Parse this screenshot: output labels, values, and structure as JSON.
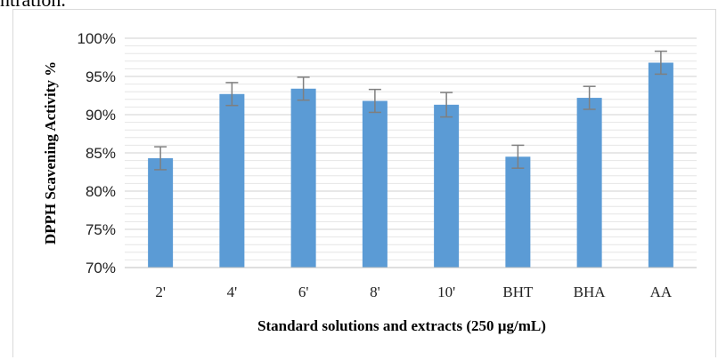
{
  "caption_fragment": "ntration.",
  "chart_data": {
    "type": "bar",
    "categories": [
      "2'",
      "4'",
      "6'",
      "8'",
      "10'",
      "BHT",
      "BHA",
      "AA"
    ],
    "values": [
      84.3,
      92.7,
      93.4,
      91.8,
      91.3,
      84.5,
      92.2,
      96.8
    ],
    "errors": [
      1.5,
      1.5,
      1.5,
      1.5,
      1.6,
      1.5,
      1.5,
      1.5
    ],
    "title": "",
    "xlabel": "Standard solutions and extracts (250 µg/mL)",
    "ylabel": "DPPH Scavening Activity %",
    "ylim": [
      70,
      100
    ],
    "y_ticks": [
      70,
      75,
      80,
      85,
      90,
      95,
      100
    ],
    "y_tick_labels": [
      "70%",
      "75%",
      "80%",
      "85%",
      "90%",
      "95%",
      "100%"
    ],
    "minor_gridlines": true,
    "bar_color": "#5b9bd5",
    "error_bar_color": "#7f7f7f",
    "grid_color": "#e6e6e6"
  }
}
